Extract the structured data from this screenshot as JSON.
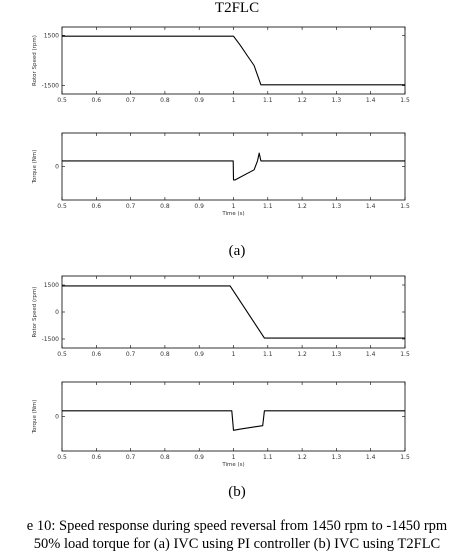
{
  "captions": {
    "top_title": "T2FLC",
    "label_a": "(a)",
    "label_b": "(b)",
    "line1": "e 10: Speed response during speed reversal from 1450 rpm to -1450 rpm",
    "line2": "50% load torque for (a) IVC using PI controller (b) IVC using T2FLC"
  },
  "chart_data": [
    {
      "type": "line",
      "title": "",
      "ylabel": "Rotor Speed (rpm)",
      "xlabel": "",
      "xlim": [
        0.5,
        1.5
      ],
      "ylim": [
        -2000,
        2000
      ],
      "x_ticks": [
        "0.5",
        "0.6",
        "0.7",
        "0.8",
        "0.9",
        "1",
        "1.1",
        "1.2",
        "1.3",
        "1.4",
        "1.5"
      ],
      "y_ticks": [
        "1500",
        "-1500"
      ],
      "series": [
        {
          "x": [
            0.5,
            1.0,
            1.02,
            1.04,
            1.06,
            1.08,
            1.5
          ],
          "y": [
            1450,
            1450,
            900,
            300,
            -300,
            -1450,
            -1450
          ]
        }
      ]
    },
    {
      "type": "line",
      "title": "",
      "ylabel": "Torque (Nm)",
      "xlabel": "Time (s)",
      "xlim": [
        0.5,
        1.5
      ],
      "ylim": [
        -30,
        30
      ],
      "x_ticks": [
        "0.5",
        "0.6",
        "0.7",
        "0.8",
        "0.9",
        "1",
        "1.1",
        "1.2",
        "1.3",
        "1.4",
        "1.5"
      ],
      "y_ticks": [
        "0"
      ],
      "series": [
        {
          "x": [
            0.5,
            0.999,
            1.0,
            1.005,
            1.06,
            1.07,
            1.075,
            1.08,
            1.5
          ],
          "y": [
            5,
            5,
            -12,
            -12,
            -3,
            5,
            12,
            5,
            5
          ]
        }
      ]
    },
    {
      "type": "line",
      "title": "",
      "ylabel": "Rotor Speed (rpm)",
      "xlabel": "",
      "xlim": [
        0.5,
        1.5
      ],
      "ylim": [
        -2000,
        2000
      ],
      "x_ticks": [
        "0.5",
        "0.6",
        "0.7",
        "0.8",
        "0.9",
        "1",
        "1.1",
        "1.2",
        "1.3",
        "1.4",
        "1.5"
      ],
      "y_ticks": [
        "1500",
        "0",
        "-1500"
      ],
      "series": [
        {
          "x": [
            0.5,
            0.99,
            1.09,
            1.5
          ],
          "y": [
            1450,
            1450,
            -1450,
            -1450
          ]
        }
      ]
    },
    {
      "type": "line",
      "title": "",
      "ylabel": "Torque (Nm)",
      "xlabel": "Time (s)",
      "xlim": [
        0.5,
        1.5
      ],
      "ylim": [
        -30,
        30
      ],
      "x_ticks": [
        "0.5",
        "0.6",
        "0.7",
        "0.8",
        "0.9",
        "1",
        "1.1",
        "1.2",
        "1.3",
        "1.4",
        "1.5"
      ],
      "y_ticks": [
        "0"
      ],
      "series": [
        {
          "x": [
            0.5,
            0.995,
            1.0,
            1.02,
            1.06,
            1.085,
            1.09,
            1.5
          ],
          "y": [
            5,
            5,
            -12,
            -11,
            -9,
            -8,
            5,
            5
          ]
        }
      ]
    }
  ]
}
